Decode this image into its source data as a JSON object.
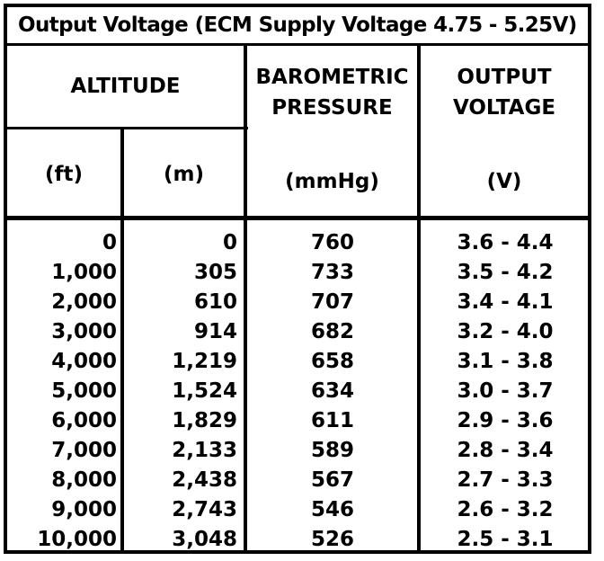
{
  "title": "Output Voltage (ECM Supply Voltage 4.75 - 5.25V)",
  "headers": {
    "altitude": "ALTITUDE",
    "baro_line1": "BAROMETRIC",
    "baro_line2": "PRESSURE",
    "out_line1": "OUTPUT",
    "out_line2": "VOLTAGE",
    "unit_ft": "(ft)",
    "unit_m": "(m)",
    "unit_mmhg": "(mmHg)",
    "unit_v": "(V)"
  },
  "rows": [
    {
      "ft": "0",
      "m": "0",
      "mmhg": "760",
      "v": "3.6 - 4.4"
    },
    {
      "ft": "1,000",
      "m": "305",
      "mmhg": "733",
      "v": "3.5 - 4.2"
    },
    {
      "ft": "2,000",
      "m": "610",
      "mmhg": "707",
      "v": "3.4 - 4.1"
    },
    {
      "ft": "3,000",
      "m": "914",
      "mmhg": "682",
      "v": "3.2 - 4.0"
    },
    {
      "ft": "4,000",
      "m": "1,219",
      "mmhg": "658",
      "v": "3.1 - 3.8"
    },
    {
      "ft": "5,000",
      "m": "1,524",
      "mmhg": "634",
      "v": "3.0 - 3.7"
    },
    {
      "ft": "6,000",
      "m": "1,829",
      "mmhg": "611",
      "v": "2.9 - 3.6"
    },
    {
      "ft": "7,000",
      "m": "2,133",
      "mmhg": "589",
      "v": "2.8 - 3.4"
    },
    {
      "ft": "8,000",
      "m": "2,438",
      "mmhg": "567",
      "v": "2.7 - 3.3"
    },
    {
      "ft": "9,000",
      "m": "2,743",
      "mmhg": "546",
      "v": "2.6 - 3.2"
    },
    {
      "ft": "10,000",
      "m": "3,048",
      "mmhg": "526",
      "v": "2.5 - 3.1"
    }
  ]
}
